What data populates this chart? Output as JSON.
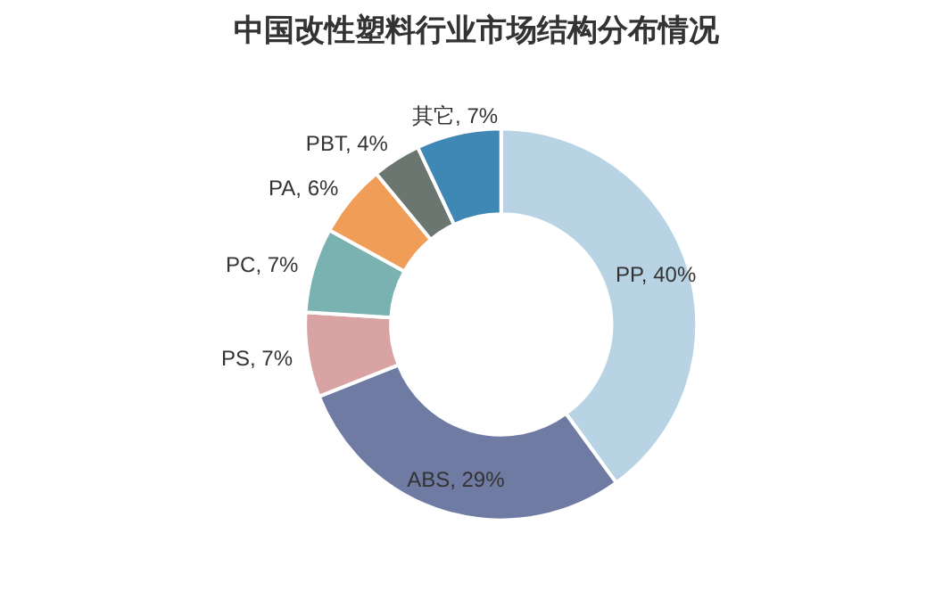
{
  "chart_data": {
    "type": "donut",
    "title": "中国改性塑料行业市场结构分布情况",
    "categories": [
      "PP",
      "ABS",
      "PS",
      "PC",
      "PA",
      "PBT",
      "其它"
    ],
    "values": [
      40,
      29,
      7,
      7,
      6,
      4,
      7
    ],
    "colors": [
      "#b8d3e4",
      "#6f7ba3",
      "#d9a3a4",
      "#79b2b0",
      "#f09d58",
      "#6b7671",
      "#3f88b5"
    ],
    "value_labels": [
      "40%",
      "29%",
      "7%",
      "7%",
      "6%",
      "4%",
      "7%"
    ]
  }
}
